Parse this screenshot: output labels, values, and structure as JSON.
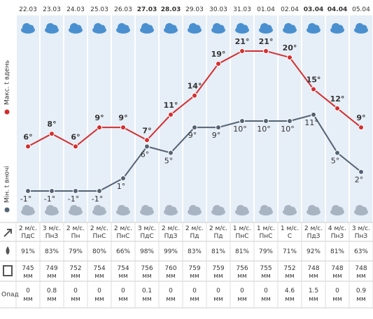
{
  "chart_data": {
    "type": "line",
    "x": [
      "22.03",
      "23.03",
      "24.03",
      "25.03",
      "26.03",
      "27.03",
      "28.03",
      "29.03",
      "30.03",
      "31.03",
      "01.04",
      "02.04",
      "03.04",
      "04.04",
      "05.04"
    ],
    "date_colors": [
      "#333",
      "#333",
      "#333",
      "#333",
      "#333",
      "#c62828",
      "#c62828",
      "#333",
      "#333",
      "#333",
      "#333",
      "#333",
      "#c62828",
      "#c62828",
      "#333"
    ],
    "series": [
      {
        "name": "Макс. t вдень",
        "color": "#d32f2f",
        "values": [
          6,
          8,
          6,
          9,
          9,
          7,
          11,
          14,
          19,
          21,
          21,
          20,
          15,
          12,
          9
        ],
        "value_labels": [
          "6°",
          "8°",
          "6°",
          "9°",
          "9°",
          "7°",
          "11°",
          "14°",
          "19°",
          "21°",
          "21°",
          "20°",
          "15°",
          "12°",
          "9°"
        ]
      },
      {
        "name": "Мін. t вночі",
        "color": "#546373",
        "values": [
          -1,
          -1,
          -1,
          -1,
          1,
          6,
          5,
          9,
          9,
          10,
          10,
          10,
          11,
          5,
          2
        ],
        "value_labels": [
          "-1°",
          "-1°",
          "-1°",
          "-1°",
          "1°",
          "6°",
          "5°",
          "9°",
          "9°",
          "10°",
          "10°",
          "10°",
          "11°",
          "5°",
          "2°"
        ]
      }
    ]
  },
  "table": {
    "wind_speed": [
      "2 м/с.",
      "3 м/с.",
      "2 м/с.",
      "2 м/с.",
      "2 м/с.",
      "3 м/с.",
      "2 м/с.",
      "2 м/с.",
      "2 м/с.",
      "1 м/с.",
      "1 м/с.",
      "1 м/с.",
      "2 м/с.",
      "4 м/с.",
      "3 м/с."
    ],
    "wind_dir": [
      "ПдС",
      "ПнЗ",
      "Пн",
      "ПнС",
      "ПнС",
      "ПдС",
      "ПдЗ",
      "Пд",
      "Пд",
      "ПнС",
      "ПнС",
      "С",
      "ПдЗ",
      "ПнЗ",
      "ПнЗ"
    ],
    "humidity": [
      "91%",
      "83%",
      "79%",
      "80%",
      "66%",
      "98%",
      "99%",
      "83%",
      "81%",
      "81%",
      "79%",
      "71%",
      "92%",
      "81%",
      "63%"
    ],
    "pressure": [
      "745",
      "749",
      "752",
      "754",
      "754",
      "756",
      "760",
      "759",
      "759",
      "756",
      "755",
      "752",
      "748",
      "748",
      "748"
    ],
    "pressure_unit": "мм",
    "precip_label": "Опад",
    "precip": [
      "0",
      "0.8",
      "0",
      "0",
      "0",
      "0.1",
      "0",
      "0",
      "0",
      "0",
      "0",
      "4.6",
      "1.5",
      "0",
      "0.9"
    ],
    "precip_unit": "мм"
  }
}
